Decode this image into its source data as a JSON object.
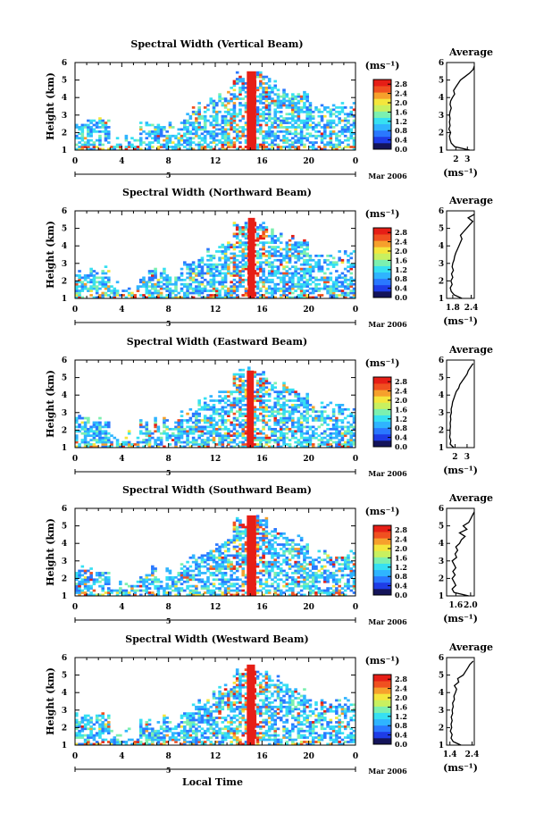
{
  "chart_data": [
    {
      "type": "heatmap",
      "title": "Spectral Width (Vertical Beam)",
      "beam": "vertical",
      "ylabel": "Height (km)",
      "xlabel": "",
      "x_ticks": [
        "0",
        "4",
        "8",
        "12",
        "16",
        "20",
        "0"
      ],
      "y_ticks": [
        "1",
        "2",
        "3",
        "4",
        "5",
        "6"
      ],
      "xlim": [
        0,
        24
      ],
      "ylim": [
        1,
        6
      ],
      "date_marker": "5",
      "date_label": "Mar 2006",
      "colorbar": {
        "unit": "(ms⁻¹)",
        "ticks": [
          "0.0",
          "0.4",
          "0.8",
          "1.2",
          "1.6",
          "2.0",
          "2.4",
          "2.8"
        ],
        "range": [
          0,
          3.0
        ]
      },
      "intense_column": {
        "x_start": 14.7,
        "x_end": 15.5,
        "y_top": 5.5,
        "value": 2.8
      },
      "profile": {
        "title": "Average",
        "xlabel": "(ms⁻¹)",
        "x_ticks": [
          "2",
          "3"
        ],
        "xlim": [
          1.2,
          3.6
        ],
        "ylim": [
          1,
          6
        ],
        "y_ticks": [
          "1",
          "2",
          "3",
          "4",
          "5",
          "6"
        ],
        "heights": [
          1.0,
          1.2,
          1.4,
          1.6,
          1.8,
          2.0,
          2.2,
          2.4,
          2.6,
          2.8,
          3.0,
          3.2,
          3.4,
          3.6,
          3.8,
          4.0,
          4.2,
          4.4,
          4.6,
          4.8,
          5.0,
          5.2,
          5.4,
          5.6,
          5.8
        ],
        "values": [
          3.2,
          1.9,
          1.6,
          1.5,
          1.45,
          1.55,
          1.4,
          1.5,
          1.45,
          1.5,
          1.45,
          1.5,
          1.6,
          1.5,
          1.55,
          1.7,
          1.9,
          1.8,
          2.0,
          2.2,
          2.4,
          2.8,
          3.2,
          3.5,
          3.6
        ]
      }
    },
    {
      "type": "heatmap",
      "title": "Spectral Width (Northward Beam)",
      "beam": "north",
      "ylabel": "Height (km)",
      "xlabel": "",
      "x_ticks": [
        "0",
        "4",
        "8",
        "12",
        "16",
        "20",
        "0"
      ],
      "y_ticks": [
        "1",
        "2",
        "3",
        "4",
        "5",
        "6"
      ],
      "xlim": [
        0,
        24
      ],
      "ylim": [
        1,
        6
      ],
      "date_marker": "5",
      "date_label": "Mar 2006",
      "colorbar": {
        "unit": "(ms⁻¹)",
        "ticks": [
          "0.0",
          "0.4",
          "0.8",
          "1.2",
          "1.6",
          "2.0",
          "2.4",
          "2.8"
        ],
        "range": [
          0,
          3.0
        ]
      },
      "intense_column": {
        "x_start": 14.8,
        "x_end": 15.4,
        "y_top": 5.6,
        "value": 2.8
      },
      "profile": {
        "title": "Average",
        "xlabel": "(ms⁻¹)",
        "x_ticks": [
          "1.8",
          "2.4"
        ],
        "xlim": [
          1.6,
          2.5
        ],
        "ylim": [
          1,
          6
        ],
        "y_ticks": [
          "1",
          "2",
          "3",
          "4",
          "5",
          "6"
        ],
        "heights": [
          1.0,
          1.2,
          1.4,
          1.6,
          1.8,
          2.0,
          2.2,
          2.4,
          2.6,
          2.8,
          3.0,
          3.2,
          3.4,
          3.6,
          3.8,
          4.0,
          4.2,
          4.4,
          4.6,
          4.8,
          5.0,
          5.2,
          5.4,
          5.6,
          5.8
        ],
        "values": [
          2.1,
          1.85,
          1.75,
          1.72,
          1.78,
          1.74,
          1.8,
          1.76,
          1.82,
          1.78,
          1.8,
          1.84,
          1.86,
          1.9,
          1.95,
          2.0,
          2.05,
          2.1,
          2.05,
          2.15,
          2.25,
          2.35,
          2.45,
          2.3,
          2.5
        ]
      }
    },
    {
      "type": "heatmap",
      "title": "Spectral Width (Eastward Beam)",
      "beam": "east",
      "ylabel": "Height (km)",
      "xlabel": "",
      "x_ticks": [
        "0",
        "4",
        "8",
        "12",
        "16",
        "20",
        "0"
      ],
      "y_ticks": [
        "1",
        "2",
        "3",
        "4",
        "5",
        "6"
      ],
      "xlim": [
        0,
        24
      ],
      "ylim": [
        1,
        6
      ],
      "date_marker": "5",
      "date_label": "Mar 2006",
      "colorbar": {
        "unit": "(ms⁻¹)",
        "ticks": [
          "0.0",
          "0.4",
          "0.8",
          "1.2",
          "1.6",
          "2.0",
          "2.4",
          "2.8"
        ],
        "range": [
          0,
          3.0
        ]
      },
      "intense_column": {
        "x_start": 14.7,
        "x_end": 15.3,
        "y_top": 5.4,
        "value": 2.8
      },
      "profile": {
        "title": "Average",
        "xlabel": "(ms⁻¹)",
        "x_ticks": [
          "2",
          "3"
        ],
        "xlim": [
          1.3,
          3.6
        ],
        "ylim": [
          1,
          6
        ],
        "y_ticks": [
          "1",
          "2",
          "3",
          "4",
          "5",
          "6"
        ],
        "heights": [
          1.0,
          1.2,
          1.4,
          1.6,
          1.8,
          2.0,
          2.2,
          2.4,
          2.6,
          2.8,
          3.0,
          3.2,
          3.4,
          3.6,
          3.8,
          4.0,
          4.2,
          4.4,
          4.6,
          4.8,
          5.0,
          5.2,
          5.4,
          5.6,
          5.8
        ],
        "values": [
          1.9,
          1.6,
          1.65,
          1.55,
          1.6,
          1.58,
          1.62,
          1.6,
          1.65,
          1.62,
          1.7,
          1.68,
          1.75,
          1.8,
          1.9,
          2.0,
          2.1,
          2.3,
          2.4,
          2.6,
          2.8,
          3.0,
          3.1,
          3.3,
          3.5
        ]
      }
    },
    {
      "type": "heatmap",
      "title": "Spectral Width (Southward Beam)",
      "beam": "south",
      "ylabel": "Height (km)",
      "xlabel": "",
      "x_ticks": [
        "0",
        "4",
        "8",
        "12",
        "16",
        "20",
        "0"
      ],
      "y_ticks": [
        "1",
        "2",
        "3",
        "4",
        "5",
        "6"
      ],
      "xlim": [
        0,
        24
      ],
      "ylim": [
        1,
        6
      ],
      "date_marker": "5",
      "date_label": "Mar 2006",
      "colorbar": {
        "unit": "(ms⁻¹)",
        "ticks": [
          "0.0",
          "0.4",
          "0.8",
          "1.2",
          "1.6",
          "2.0",
          "2.4",
          "2.8"
        ],
        "range": [
          0,
          3.0
        ]
      },
      "intense_column": {
        "x_start": 14.7,
        "x_end": 15.5,
        "y_top": 5.6,
        "value": 2.8
      },
      "profile": {
        "title": "Average",
        "xlabel": "(ms⁻¹)",
        "x_ticks": [
          "1.6",
          "2.0"
        ],
        "xlim": [
          1.35,
          2.1
        ],
        "ylim": [
          1,
          6
        ],
        "y_ticks": [
          "1",
          "2",
          "3",
          "4",
          "5",
          "6"
        ],
        "heights": [
          1.0,
          1.2,
          1.4,
          1.6,
          1.8,
          2.0,
          2.2,
          2.4,
          2.6,
          2.8,
          3.0,
          3.2,
          3.4,
          3.6,
          3.8,
          4.0,
          4.2,
          4.4,
          4.6,
          4.8,
          5.0,
          5.2,
          5.4,
          5.6,
          5.8
        ],
        "values": [
          1.95,
          1.55,
          1.5,
          1.6,
          1.55,
          1.5,
          1.58,
          1.52,
          1.6,
          1.55,
          1.5,
          1.62,
          1.58,
          1.65,
          1.6,
          1.7,
          1.75,
          1.85,
          1.7,
          1.9,
          1.8,
          1.95,
          2.0,
          2.05,
          2.1
        ]
      }
    },
    {
      "type": "heatmap",
      "title": "Spectral Width (Westward Beam)",
      "beam": "west",
      "ylabel": "Height (km)",
      "xlabel": "Local Time",
      "x_ticks": [
        "0",
        "4",
        "8",
        "12",
        "16",
        "20",
        "0"
      ],
      "y_ticks": [
        "1",
        "2",
        "3",
        "4",
        "5",
        "6"
      ],
      "xlim": [
        0,
        24
      ],
      "ylim": [
        1,
        6
      ],
      "date_marker": "5",
      "date_label": "Mar 2006",
      "colorbar": {
        "unit": "(ms⁻¹)",
        "ticks": [
          "0.0",
          "0.4",
          "0.8",
          "1.2",
          "1.6",
          "2.0",
          "2.4",
          "2.8"
        ],
        "range": [
          0,
          3.0
        ]
      },
      "intense_column": {
        "x_start": 14.7,
        "x_end": 15.4,
        "y_top": 5.6,
        "value": 2.8
      },
      "profile": {
        "title": "Average",
        "xlabel": "(ms⁻¹)",
        "x_ticks": [
          "1.4",
          "2.4"
        ],
        "xlim": [
          1.25,
          2.5
        ],
        "ylim": [
          1,
          6
        ],
        "y_ticks": [
          "1",
          "2",
          "3",
          "4",
          "5",
          "6"
        ],
        "heights": [
          1.0,
          1.2,
          1.4,
          1.6,
          1.8,
          2.0,
          2.2,
          2.4,
          2.6,
          2.8,
          3.0,
          3.2,
          3.4,
          3.6,
          3.8,
          4.0,
          4.2,
          4.4,
          4.6,
          4.8,
          5.0,
          5.2,
          5.4,
          5.6,
          5.8
        ],
        "values": [
          1.9,
          1.55,
          1.45,
          1.5,
          1.42,
          1.48,
          1.45,
          1.5,
          1.46,
          1.52,
          1.5,
          1.55,
          1.52,
          1.6,
          1.58,
          1.65,
          1.7,
          1.6,
          1.8,
          1.75,
          2.0,
          2.1,
          2.2,
          2.3,
          2.45
        ]
      }
    }
  ],
  "colors": {
    "scale": [
      "#14145a",
      "#1e3ce6",
      "#2a78ff",
      "#2fb4ff",
      "#36e0f2",
      "#7cf0b0",
      "#c8f060",
      "#f4e63c",
      "#f6a02c",
      "#f05020",
      "#e61e16"
    ]
  }
}
